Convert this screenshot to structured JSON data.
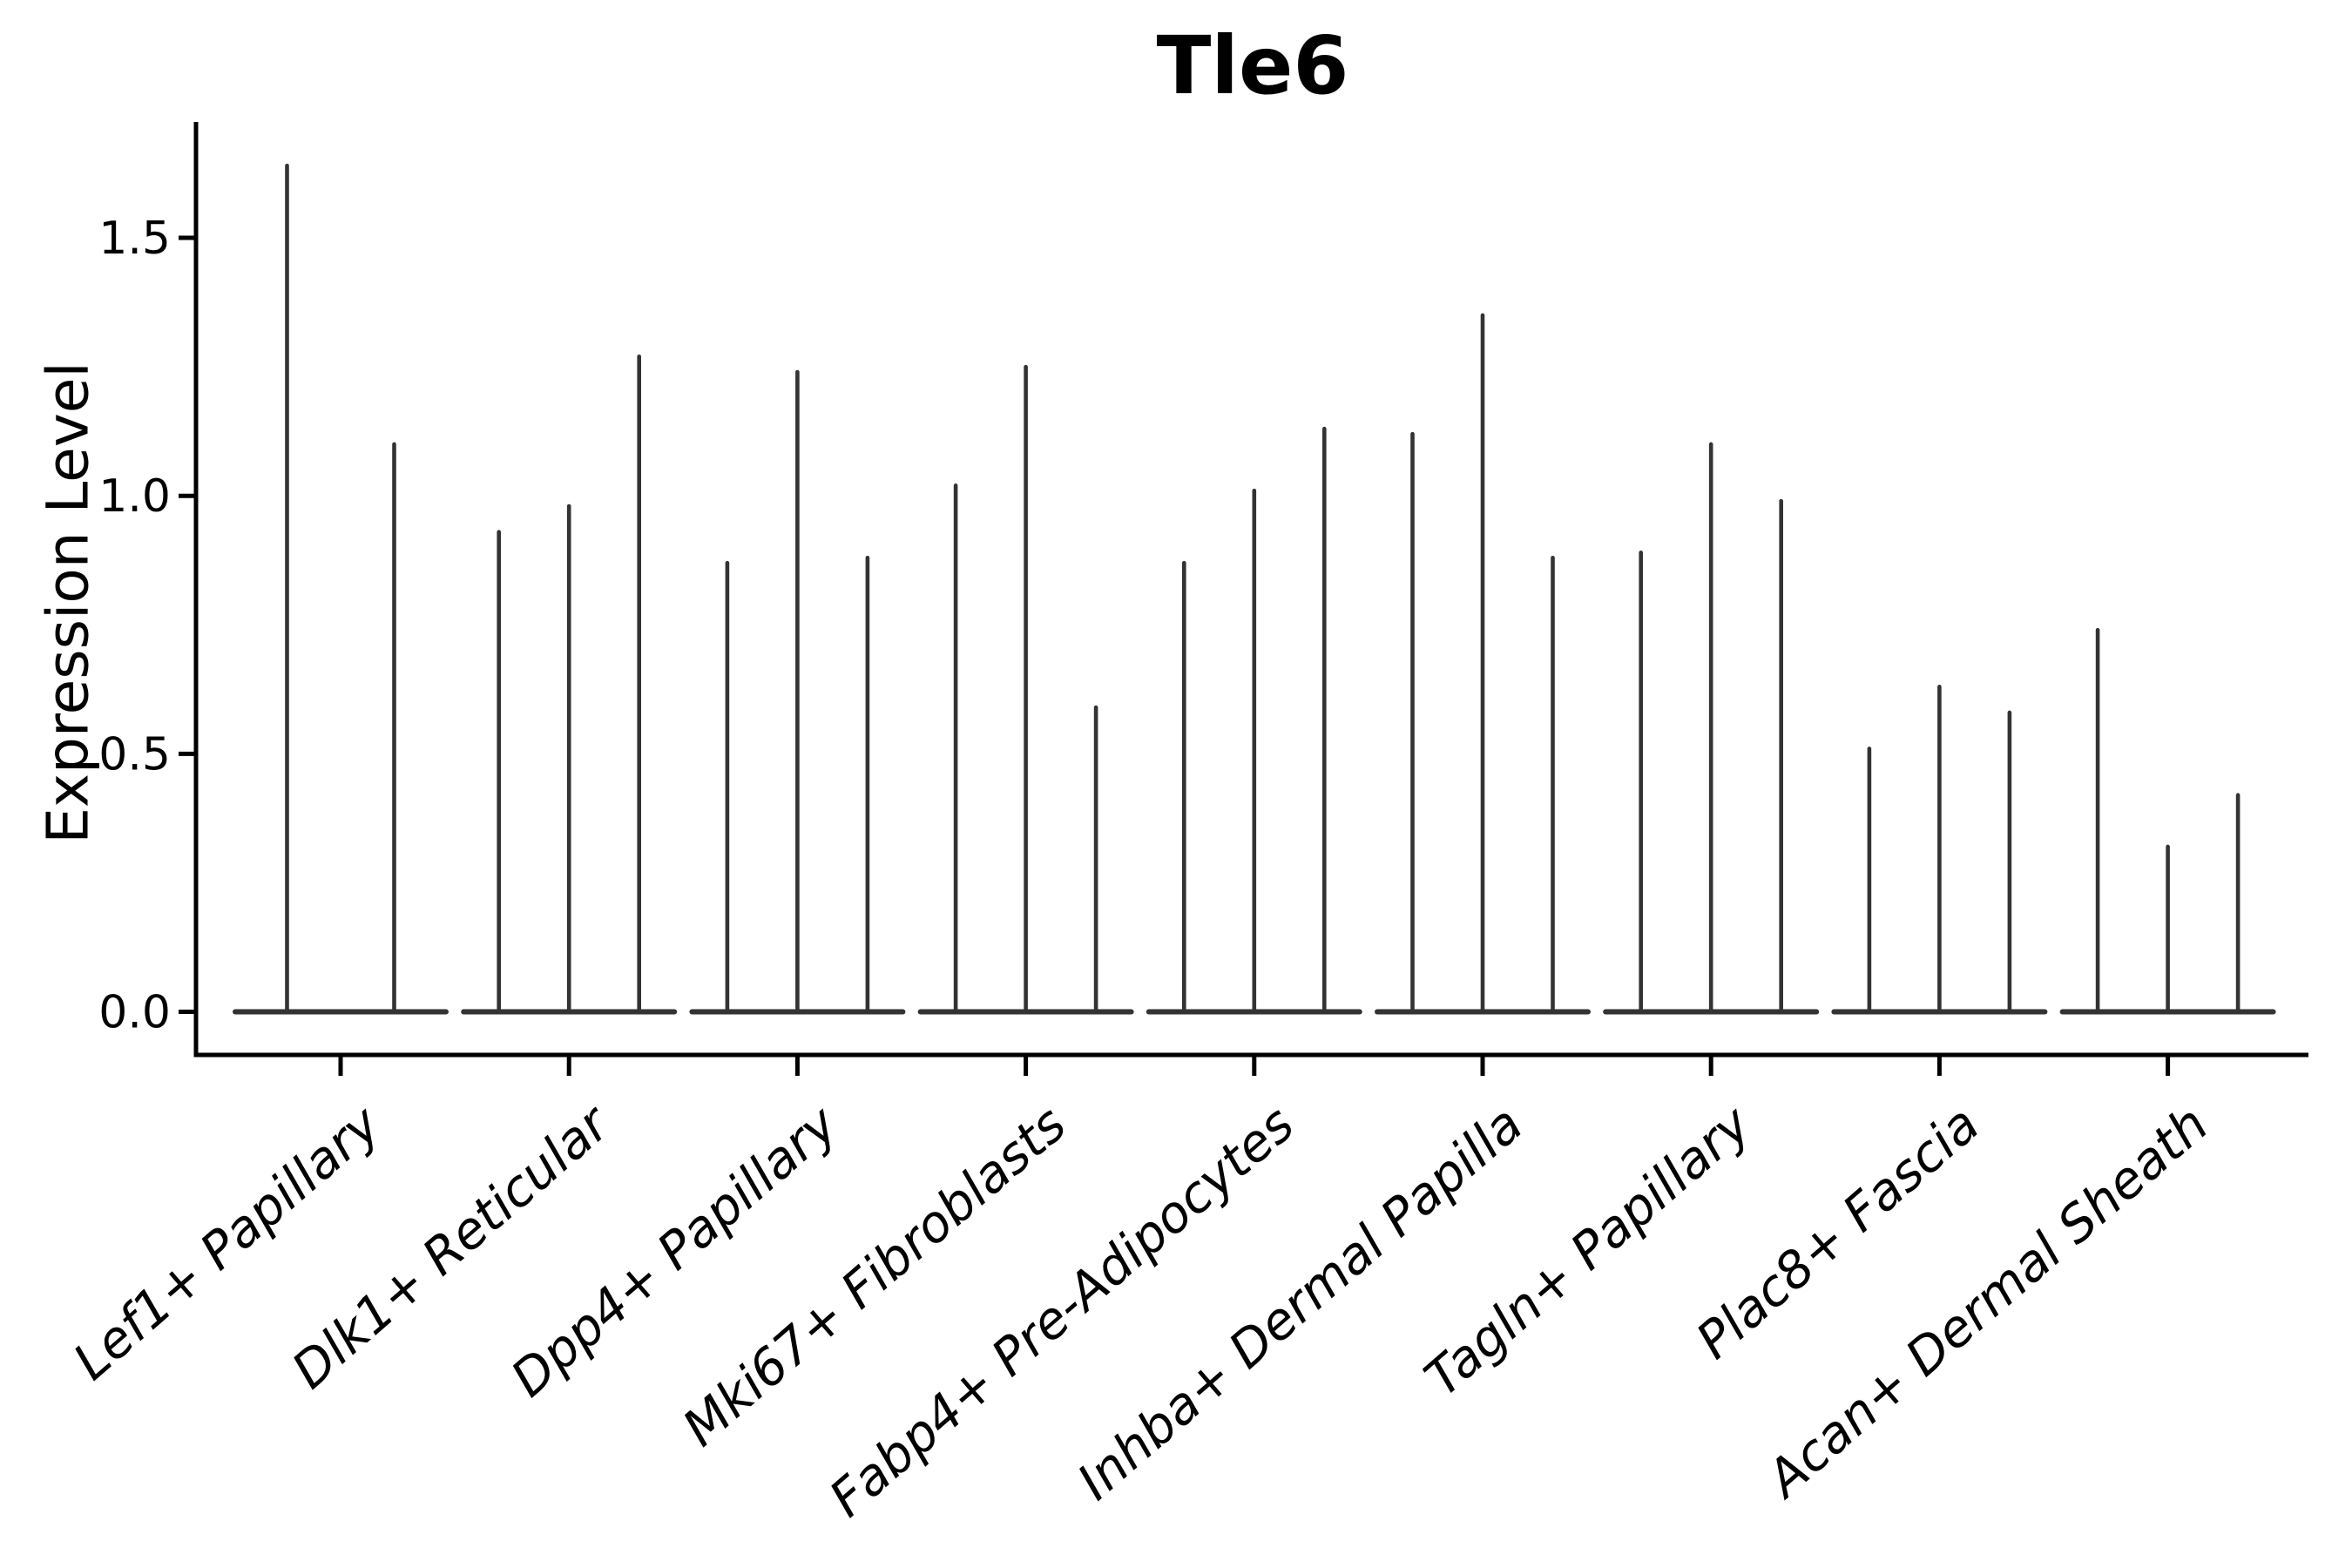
{
  "figure": {
    "background": "#ffffff"
  },
  "chart_data": {
    "type": "violin",
    "title": "Tle6",
    "ylabel": "Expression Level",
    "xlabel": "",
    "grid": false,
    "legend": false,
    "ylim": [
      -0.08,
      1.73
    ],
    "yticks": [
      0.0,
      0.5,
      1.0,
      1.5
    ],
    "ytick_labels": [
      "0.0",
      "0.5",
      "1.0",
      "1.5"
    ],
    "categories": [
      "Lef1+ Papillary",
      "Dlk1+ Reticular",
      "Dpp4+ Papillary",
      "Mki67+ Fibroblasts",
      "Fabp4+ Pre-Adipocytes",
      "Inhba+ Dermal Papilla",
      "Tagln+ Papillary",
      "Plac8+ Fascia",
      "Acan+ Dermal Sheath"
    ],
    "groups": [
      {
        "label": "Lef1+ Papillary",
        "violin_max_expression": [
          1.64,
          1.1
        ]
      },
      {
        "label": "Dlk1+ Reticular",
        "violin_max_expression": [
          0.93,
          0.98,
          1.27
        ]
      },
      {
        "label": "Dpp4+ Papillary",
        "violin_max_expression": [
          0.87,
          1.24,
          0.88
        ]
      },
      {
        "label": "Mki67+ Fibroblasts",
        "violin_max_expression": [
          1.02,
          1.25,
          0.59
        ]
      },
      {
        "label": "Fabp4+ Pre-Adipocytes",
        "violin_max_expression": [
          0.87,
          1.01,
          1.13
        ]
      },
      {
        "label": "Inhba+ Dermal Papilla",
        "violin_max_expression": [
          1.12,
          1.35,
          0.88
        ]
      },
      {
        "label": "Tagln+ Papillary",
        "violin_max_expression": [
          0.89,
          1.1,
          0.99
        ]
      },
      {
        "label": "Plac8+ Fascia",
        "violin_max_expression": [
          0.51,
          0.63,
          0.58
        ]
      },
      {
        "label": "Acan+ Dermal Sheath",
        "violin_max_expression": [
          0.74,
          0.32,
          0.42
        ]
      }
    ],
    "violin_style": "density concentrated at 0 (flat wide base) with thin vertical tail up to max expression",
    "colors": {
      "violin": "#333333",
      "axis": "#000000",
      "text": "#000000"
    }
  }
}
